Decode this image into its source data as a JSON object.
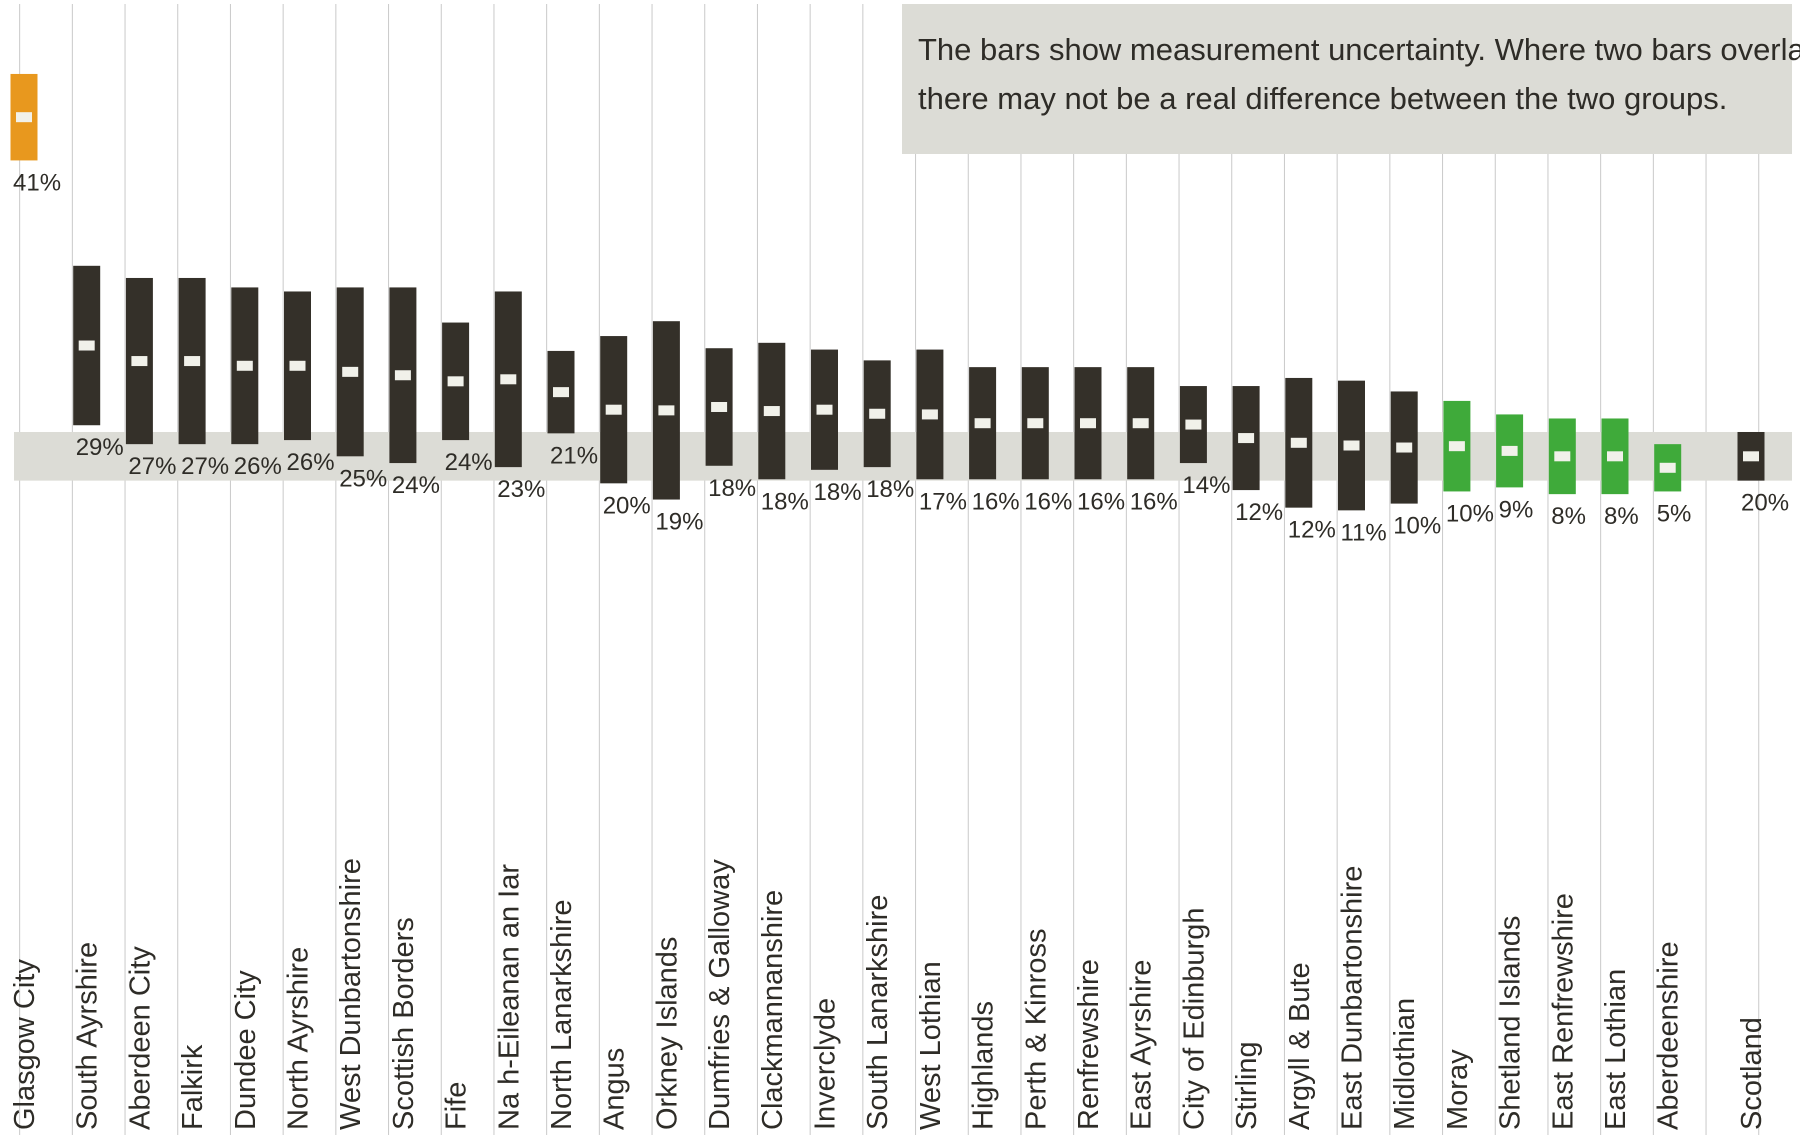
{
  "note": {
    "line1": "The bars show measurement uncertainty. Where two bars overlap,",
    "line2": "there may not be a real difference between the two groups."
  },
  "colors": {
    "above": "#e8981e",
    "neutral": "#343029",
    "below": "#3faa3a",
    "band": "#dcdcd6",
    "marker": "#f1f1ea",
    "grid": "#c9c9c9"
  },
  "chart_data": {
    "type": "interval",
    "reference": {
      "category": "Scotland",
      "value": 20,
      "low": 18.2,
      "high": 21.8
    },
    "ylim": [
      3,
      48
    ],
    "categories": [
      {
        "name": "Glasgow City",
        "label": "41%",
        "value": 41,
        "low": 41.9,
        "high": 48.3,
        "group": "above"
      },
      {
        "name": "South Ayrshire",
        "label": "29%",
        "value": 29,
        "low": 22.3,
        "high": 34.1,
        "group": "neutral"
      },
      {
        "name": "Aberdeen City",
        "label": "27%",
        "value": 27,
        "low": 20.9,
        "high": 33.2,
        "group": "neutral"
      },
      {
        "name": "Falkirk",
        "label": "27%",
        "value": 27,
        "low": 20.9,
        "high": 33.2,
        "group": "neutral"
      },
      {
        "name": "Dundee City",
        "label": "26%",
        "value": 26,
        "low": 20.9,
        "high": 32.5,
        "group": "neutral"
      },
      {
        "name": "North Ayrshire",
        "label": "26%",
        "value": 26,
        "low": 21.2,
        "high": 32.2,
        "group": "neutral"
      },
      {
        "name": "West Dunbartonshire",
        "label": "25%",
        "value": 25,
        "low": 20.0,
        "high": 32.5,
        "group": "neutral"
      },
      {
        "name": "Scottish Borders",
        "label": "24%",
        "value": 24,
        "low": 19.5,
        "high": 32.5,
        "group": "neutral"
      },
      {
        "name": "Fife",
        "label": "24%",
        "value": 24,
        "low": 21.2,
        "high": 29.9,
        "group": "neutral"
      },
      {
        "name": "Na h-Eileanan an Iar",
        "label": "23%",
        "value": 23,
        "low": 19.2,
        "high": 32.2,
        "group": "neutral"
      },
      {
        "name": "North Lanarkshire",
        "label": "21%",
        "value": 21,
        "low": 21.7,
        "high": 27.8,
        "group": "neutral"
      },
      {
        "name": "Angus",
        "label": "20%",
        "value": 20,
        "low": 18.0,
        "high": 28.9,
        "group": "neutral"
      },
      {
        "name": "Orkney Islands",
        "label": "19%",
        "value": 19,
        "low": 16.8,
        "high": 30.0,
        "group": "neutral"
      },
      {
        "name": "Dumfries & Galloway",
        "label": "18%",
        "value": 18,
        "low": 19.3,
        "high": 28.0,
        "group": "neutral"
      },
      {
        "name": "Clackmannanshire",
        "label": "18%",
        "value": 18,
        "low": 18.3,
        "high": 28.4,
        "group": "neutral"
      },
      {
        "name": "Inverclyde",
        "label": "18%",
        "value": 18,
        "low": 19.0,
        "high": 27.9,
        "group": "neutral"
      },
      {
        "name": "South Lanarkshire",
        "label": "18%",
        "value": 18,
        "low": 19.2,
        "high": 27.1,
        "group": "neutral"
      },
      {
        "name": "West Lothian",
        "label": "17%",
        "value": 17,
        "low": 18.3,
        "high": 27.9,
        "group": "neutral"
      },
      {
        "name": "Highlands",
        "label": "16%",
        "value": 16,
        "low": 18.3,
        "high": 26.6,
        "group": "neutral"
      },
      {
        "name": "Perth & Kinross",
        "label": "16%",
        "value": 16,
        "low": 18.3,
        "high": 26.6,
        "group": "neutral"
      },
      {
        "name": "Renfrewshire",
        "label": "16%",
        "value": 16,
        "low": 18.3,
        "high": 26.6,
        "group": "neutral"
      },
      {
        "name": "East Ayrshire",
        "label": "16%",
        "value": 16,
        "low": 18.3,
        "high": 26.6,
        "group": "neutral"
      },
      {
        "name": "City of Edinburgh",
        "label": "14%",
        "value": 14,
        "low": 19.5,
        "high": 25.2,
        "group": "neutral"
      },
      {
        "name": "Stirling",
        "label": "12%",
        "value": 12,
        "low": 17.5,
        "high": 25.2,
        "group": "neutral"
      },
      {
        "name": "Argyll & Bute",
        "label": "12%",
        "value": 12,
        "low": 16.2,
        "high": 25.8,
        "group": "neutral"
      },
      {
        "name": "East Dunbartonshire",
        "label": "11%",
        "value": 11,
        "low": 16.0,
        "high": 25.6,
        "group": "neutral"
      },
      {
        "name": "Midlothian",
        "label": "10%",
        "value": 10,
        "low": 16.5,
        "high": 24.8,
        "group": "neutral"
      },
      {
        "name": "Moray",
        "label": "10%",
        "value": 10,
        "low": 17.4,
        "high": 24.1,
        "group": "below"
      },
      {
        "name": "Shetland Islands",
        "label": "9%",
        "value": 9,
        "low": 17.7,
        "high": 23.1,
        "group": "below"
      },
      {
        "name": "East Renfrewshire",
        "label": "8%",
        "value": 8,
        "low": 17.2,
        "high": 22.8,
        "group": "below"
      },
      {
        "name": "East Lothian",
        "label": "8%",
        "value": 8,
        "low": 17.2,
        "high": 22.8,
        "group": "below"
      },
      {
        "name": "Aberdeenshire",
        "label": "5%",
        "value": 5,
        "low": 17.4,
        "high": 20.9,
        "group": "below"
      }
    ]
  }
}
